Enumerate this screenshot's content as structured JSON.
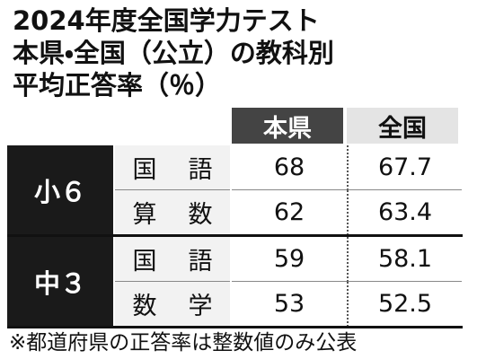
{
  "header": {
    "title": [
      "2024年度全国学力テスト",
      "本県・全国（公立）の教科別",
      "平均正答率（％）"
    ]
  },
  "table": {
    "columns": [
      "本県",
      "全国"
    ],
    "groups": [
      {
        "label": "小６",
        "rows": [
          {
            "subject": "国語",
            "values": [
              68,
              67.7
            ]
          },
          {
            "subject": "算数",
            "values": [
              62,
              63.4
            ]
          }
        ]
      },
      {
        "label": "中３",
        "rows": [
          {
            "subject": "国語",
            "values": [
              59,
              58.1
            ]
          },
          {
            "subject": "数学",
            "values": [
              53,
              52.5
            ]
          }
        ]
      }
    ]
  },
  "footnote": "※都道府県の正答率は整数値のみ公表"
}
